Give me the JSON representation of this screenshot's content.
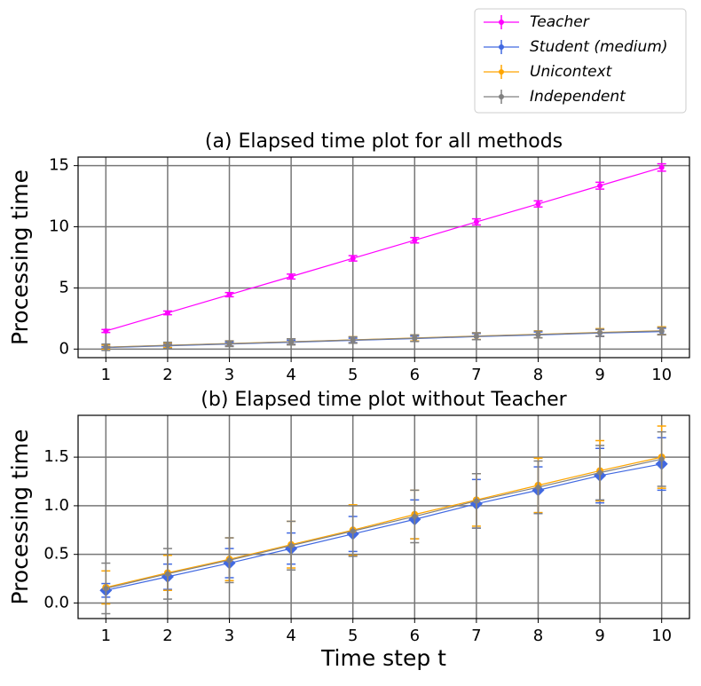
{
  "chart_data": [
    {
      "type": "line",
      "title": "(a) Elapsed time plot for all methods",
      "ylabel": "Processing time",
      "x": [
        1,
        2,
        3,
        4,
        5,
        6,
        7,
        8,
        9,
        10
      ],
      "xlim": [
        0.55,
        10.45
      ],
      "xticks": [
        1,
        2,
        3,
        4,
        5,
        6,
        7,
        8,
        9,
        10
      ],
      "ylim": [
        -0.7,
        15.7
      ],
      "yticks": [
        0,
        5,
        10,
        15
      ],
      "grid": true,
      "legend": "upper right",
      "series": [
        {
          "name": "Teacher",
          "color": "#ff00ff",
          "values": [
            1.48,
            2.96,
            4.45,
            5.93,
            7.42,
            8.9,
            10.4,
            11.87,
            13.36,
            14.85
          ],
          "errors": [
            0.12,
            0.15,
            0.17,
            0.2,
            0.22,
            0.22,
            0.25,
            0.25,
            0.28,
            0.3
          ]
        },
        {
          "name": "Student (medium)",
          "color": "#4169e1",
          "values": [
            0.13,
            0.27,
            0.41,
            0.56,
            0.71,
            0.86,
            1.02,
            1.16,
            1.31,
            1.43
          ],
          "errors": [
            0.07,
            0.13,
            0.15,
            0.16,
            0.18,
            0.2,
            0.25,
            0.24,
            0.28,
            0.27
          ]
        },
        {
          "name": "Unicontext",
          "color": "#ffa500",
          "values": [
            0.16,
            0.31,
            0.45,
            0.6,
            0.75,
            0.91,
            1.06,
            1.21,
            1.36,
            1.5
          ],
          "errors": [
            0.17,
            0.18,
            0.22,
            0.24,
            0.26,
            0.25,
            0.27,
            0.28,
            0.31,
            0.32
          ]
        },
        {
          "name": "Independent",
          "color": "#808080",
          "values": [
            0.15,
            0.3,
            0.44,
            0.59,
            0.74,
            0.89,
            1.05,
            1.19,
            1.34,
            1.48
          ],
          "errors": [
            0.26,
            0.26,
            0.23,
            0.25,
            0.26,
            0.27,
            0.28,
            0.27,
            0.28,
            0.28
          ]
        }
      ]
    },
    {
      "type": "line",
      "title": "(b) Elapsed time plot without Teacher",
      "ylabel": "Processing time",
      "xlabel": "Time step t",
      "x": [
        1,
        2,
        3,
        4,
        5,
        6,
        7,
        8,
        9,
        10
      ],
      "xlim": [
        0.55,
        10.45
      ],
      "xticks": [
        1,
        2,
        3,
        4,
        5,
        6,
        7,
        8,
        9,
        10
      ],
      "ylim": [
        -0.16,
        1.93
      ],
      "yticks": [
        {
          "value": 0,
          "label": "0.0"
        },
        0.5,
        {
          "value": 1,
          "label": "1.0"
        },
        1.5
      ],
      "grid": true,
      "series": [
        {
          "color": "#4169e1",
          "values": [
            0.13,
            0.27,
            0.41,
            0.56,
            0.71,
            0.86,
            1.02,
            1.16,
            1.31,
            1.43
          ],
          "errors": [
            0.07,
            0.13,
            0.15,
            0.16,
            0.18,
            0.2,
            0.25,
            0.24,
            0.28,
            0.27
          ]
        },
        {
          "color": "#ffa500",
          "values": [
            0.16,
            0.31,
            0.45,
            0.6,
            0.75,
            0.91,
            1.06,
            1.21,
            1.36,
            1.5
          ],
          "errors": [
            0.17,
            0.18,
            0.22,
            0.24,
            0.26,
            0.25,
            0.27,
            0.28,
            0.31,
            0.32
          ]
        },
        {
          "color": "#808080",
          "values": [
            0.15,
            0.3,
            0.44,
            0.59,
            0.74,
            0.89,
            1.05,
            1.19,
            1.34,
            1.48
          ],
          "errors": [
            0.26,
            0.26,
            0.23,
            0.25,
            0.26,
            0.27,
            0.28,
            0.27,
            0.28,
            0.28
          ]
        }
      ]
    }
  ]
}
